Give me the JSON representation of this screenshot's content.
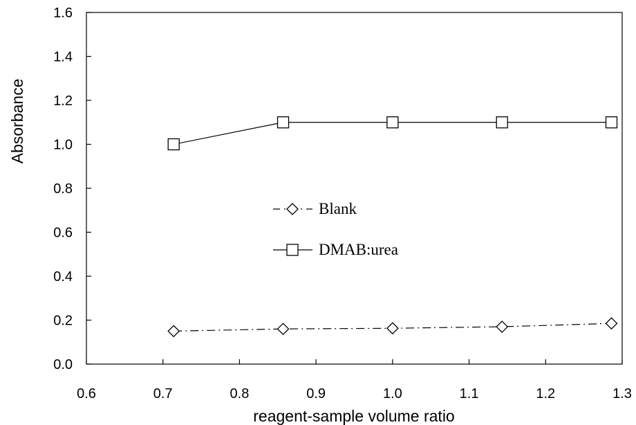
{
  "chart_data": {
    "type": "line",
    "xlabel": "reagent-sample volume ratio",
    "ylabel": "Absorbance",
    "xlim": [
      0.6,
      1.3
    ],
    "ylim": [
      0.0,
      1.6
    ],
    "x_ticks": [
      "0.6",
      "0.7",
      "0.8",
      "0.9",
      "1.0",
      "1.1",
      "1.2",
      "1.3"
    ],
    "y_ticks": [
      "0.0",
      "0.2",
      "0.4",
      "0.6",
      "0.8",
      "1.0",
      "1.2",
      "1.4",
      "1.6"
    ],
    "grid": false,
    "legend_position": "center",
    "series": [
      {
        "name": "Blank",
        "marker": "diamond",
        "line_style": "dash-dot",
        "color": "#000000",
        "x": [
          0.714,
          0.857,
          1.0,
          1.143,
          1.286
        ],
        "y": [
          0.15,
          0.16,
          0.163,
          0.17,
          0.185
        ]
      },
      {
        "name": "DMAB:urea",
        "marker": "square",
        "line_style": "solid",
        "color": "#000000",
        "x": [
          0.714,
          0.857,
          1.0,
          1.143,
          1.286
        ],
        "y": [
          1.0,
          1.1,
          1.1,
          1.1,
          1.1
        ]
      }
    ]
  }
}
